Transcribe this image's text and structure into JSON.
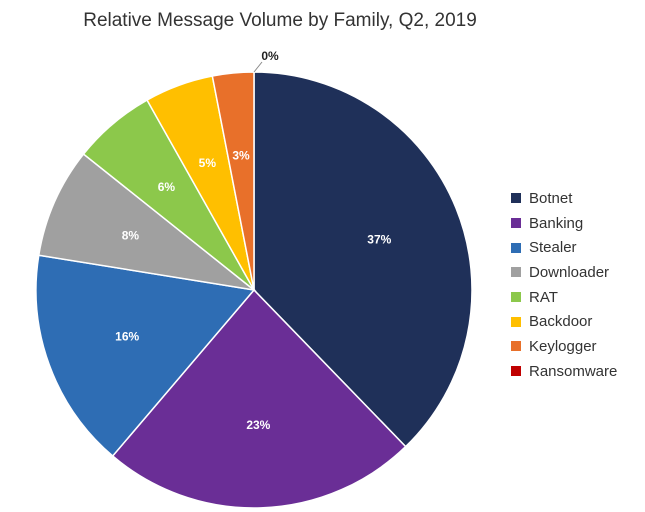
{
  "chart_data": {
    "type": "pie",
    "title": "Relative Message Volume by Family, Q2, 2019",
    "slices": [
      {
        "name": "Botnet",
        "value": 37,
        "label": "37%",
        "color": "#1f3059"
      },
      {
        "name": "Banking",
        "value": 23,
        "label": "23%",
        "color": "#6a2e96"
      },
      {
        "name": "Stealer",
        "value": 16,
        "label": "16%",
        "color": "#2e6db4"
      },
      {
        "name": "Downloader",
        "value": 8,
        "label": "8%",
        "color": "#a0a0a0"
      },
      {
        "name": "RAT",
        "value": 6,
        "label": "6%",
        "color": "#8cc84b"
      },
      {
        "name": "Backdoor",
        "value": 5,
        "label": "5%",
        "color": "#ffbf00"
      },
      {
        "name": "Keylogger",
        "value": 3,
        "label": "3%",
        "color": "#e8702a"
      },
      {
        "name": "Ransomware",
        "value": 0,
        "label": "0%",
        "color": "#c00000"
      }
    ],
    "legend_position": "right"
  }
}
